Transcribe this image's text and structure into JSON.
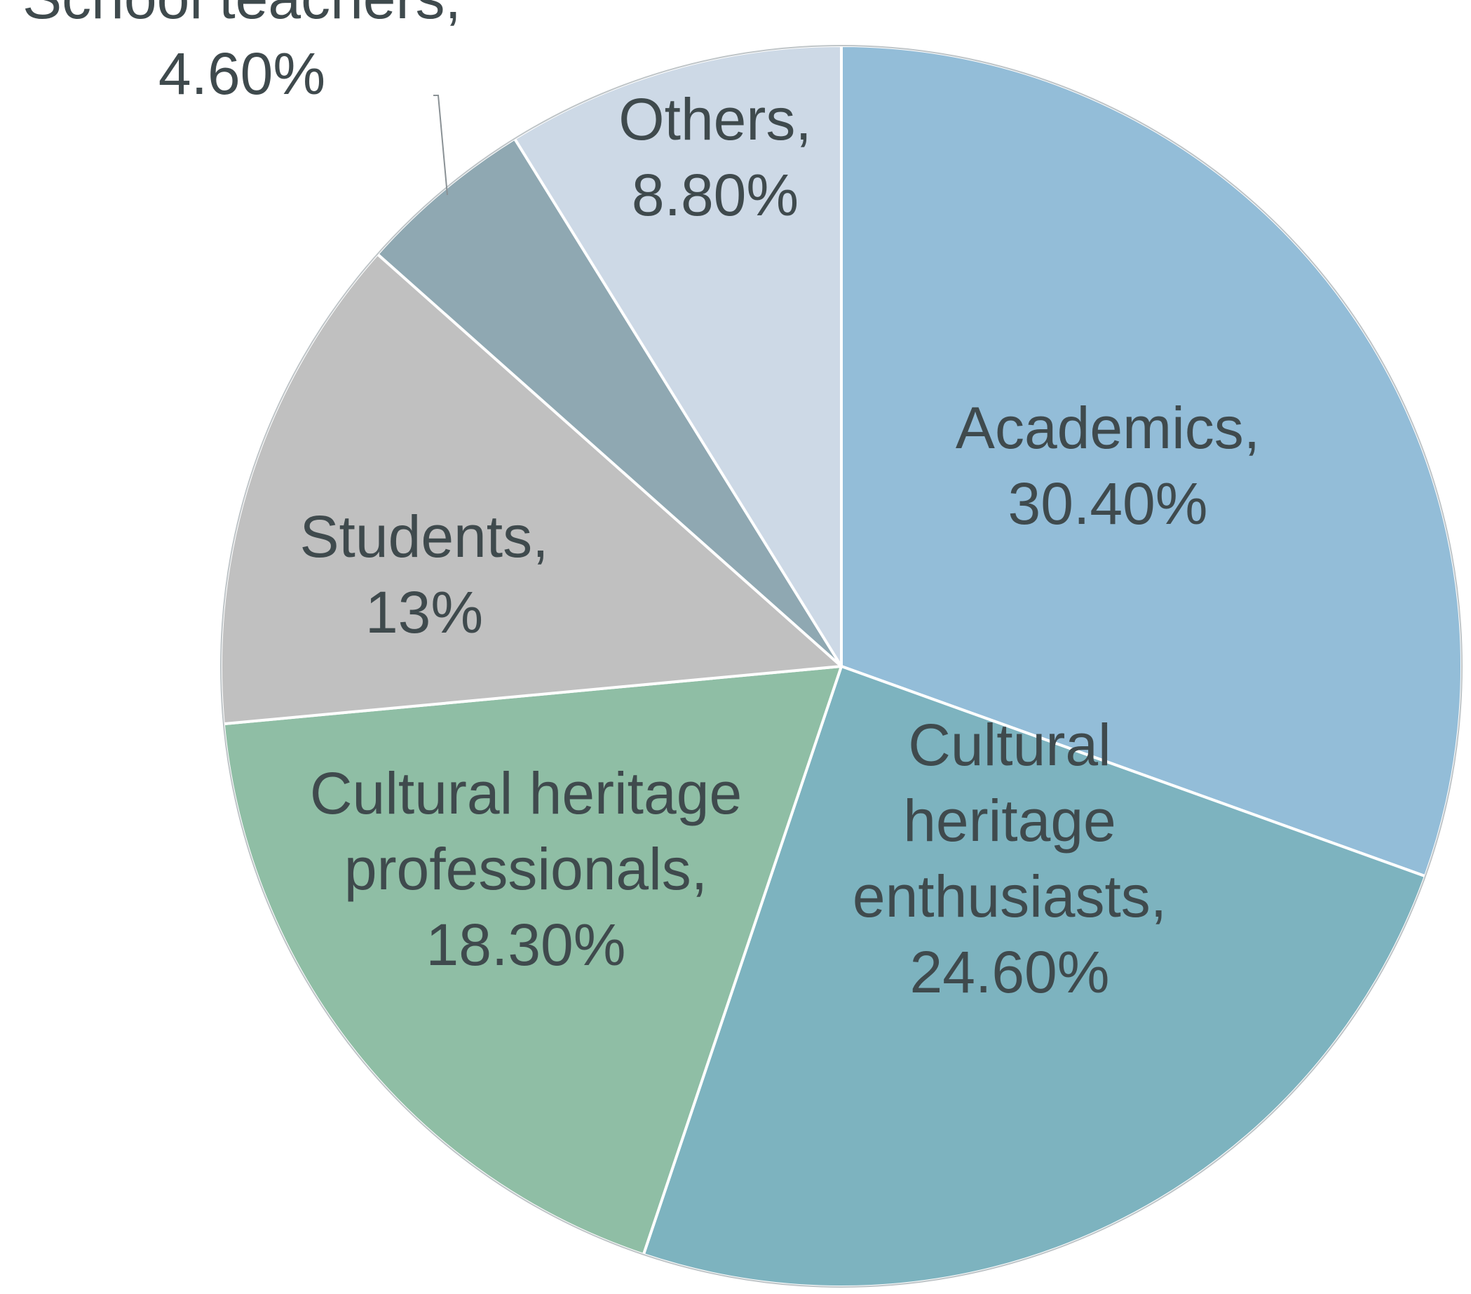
{
  "chart_data": {
    "type": "pie",
    "title": "",
    "slices": [
      {
        "category": "Academics",
        "value": 30.4,
        "color": "#93bdd8",
        "label_lines": [
          "Academics,",
          "30.40%"
        ]
      },
      {
        "category": "Cultural heritage enthusiasts",
        "value": 24.6,
        "color": "#7db3bf",
        "label_lines": [
          "Cultural",
          "heritage",
          "enthusiasts,",
          "24.60%"
        ]
      },
      {
        "category": "Cultural heritage professionals",
        "value": 18.3,
        "color": "#8fbea5",
        "label_lines": [
          "Cultural heritage",
          "professionals,",
          "18.30%"
        ]
      },
      {
        "category": "Students",
        "value": 13,
        "color": "#c0c0c0",
        "label_lines": [
          "Students,",
          "13%"
        ]
      },
      {
        "category": "School teachers",
        "value": 4.6,
        "color": "#8fa8b2",
        "label_lines": [
          "School teachers,",
          "4.60%"
        ]
      },
      {
        "category": "Others",
        "value": 8.8,
        "color": "#cdd9e6",
        "label_lines": [
          "Others,",
          "8.80%"
        ]
      }
    ],
    "legend": "none",
    "data_labels": "category name and percentage"
  }
}
